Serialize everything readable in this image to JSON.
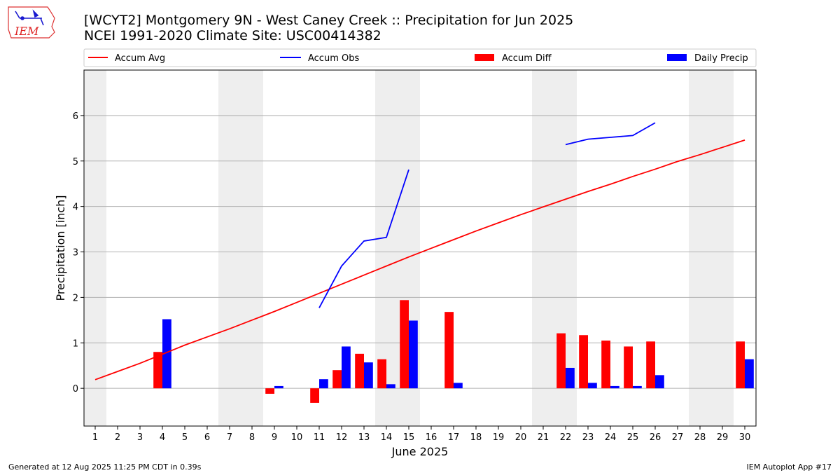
{
  "header": {
    "title_line1": "[WCYT2] Montgomery 9N - West Caney Creek :: Precipitation for Jun 2025",
    "title_line2": "NCEI 1991-2020 Climate Site: USC00414382",
    "logo_text": "IEM",
    "logo_icon": "iem-iowa-map-logo-icon"
  },
  "footer": {
    "left": "Generated at 12 Aug 2025 11:25 PM CDT in 0.39s",
    "right": "IEM Autoplot App #17"
  },
  "colors": {
    "avg": "#ff0000",
    "obs": "#0000ff",
    "diff": "#ff0000",
    "daily": "#0000ff",
    "weekend_band": "#eeeeee",
    "grid": "#b0b0b0"
  },
  "chart_data": {
    "type": "bar",
    "xlabel": "June 2025",
    "ylabel": "Precipitation [inch]",
    "xlim": [
      0.5,
      30.5
    ],
    "ylim": [
      -0.83,
      7.0
    ],
    "yticks": [
      0,
      1,
      2,
      3,
      4,
      5,
      6
    ],
    "grid": "horizontal",
    "legend_placement": "top, above plot",
    "legend": [
      "Accum Avg",
      "Accum Obs",
      "Accum Diff",
      "Daily Precip"
    ],
    "days": [
      1,
      2,
      3,
      4,
      5,
      6,
      7,
      8,
      9,
      10,
      11,
      12,
      13,
      14,
      15,
      16,
      17,
      18,
      19,
      20,
      21,
      22,
      23,
      24,
      25,
      26,
      27,
      28,
      29,
      30
    ],
    "weekend_days": [
      1,
      7,
      8,
      14,
      15,
      21,
      22,
      28,
      29
    ],
    "accum_avg": [
      0.19,
      0.37,
      0.55,
      0.75,
      0.95,
      1.13,
      1.31,
      1.5,
      1.69,
      1.89,
      2.09,
      2.29,
      2.49,
      2.69,
      2.89,
      3.08,
      3.27,
      3.46,
      3.64,
      3.82,
      3.99,
      4.16,
      4.33,
      4.49,
      4.66,
      4.82,
      4.99,
      5.14,
      5.3,
      5.46
    ],
    "accum_obs": [
      null,
      null,
      null,
      null,
      null,
      null,
      null,
      null,
      null,
      null,
      1.77,
      2.69,
      3.24,
      3.32,
      4.81,
      null,
      null,
      null,
      null,
      null,
      null,
      5.36,
      5.48,
      5.52,
      5.56,
      5.84,
      null,
      null,
      null,
      null
    ],
    "accum_diff": [
      null,
      null,
      null,
      0.8,
      null,
      null,
      null,
      null,
      -0.12,
      null,
      -0.32,
      0.4,
      0.76,
      0.64,
      1.94,
      null,
      1.68,
      null,
      null,
      null,
      null,
      1.21,
      1.17,
      1.05,
      0.92,
      1.03,
      null,
      null,
      null,
      1.03
    ],
    "daily_precip": [
      null,
      null,
      null,
      1.52,
      null,
      null,
      null,
      null,
      0.05,
      null,
      0.2,
      0.92,
      0.57,
      0.09,
      1.49,
      null,
      0.12,
      null,
      null,
      null,
      null,
      0.45,
      0.12,
      0.05,
      0.05,
      0.29,
      null,
      null,
      null,
      0.64
    ]
  }
}
